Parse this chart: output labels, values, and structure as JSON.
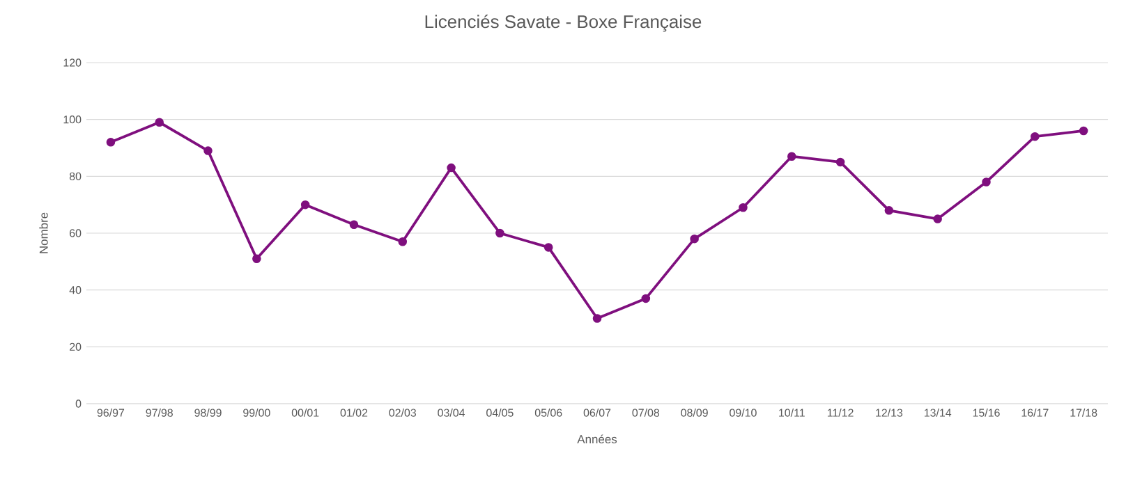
{
  "chart_data": {
    "type": "line",
    "title": "Licenciés Savate - Boxe Française",
    "xlabel": "Années",
    "ylabel": "Nombre",
    "categories": [
      "96/97",
      "97/98",
      "98/99",
      "99/00",
      "00/01",
      "01/02",
      "02/03",
      "03/04",
      "04/05",
      "05/06",
      "06/07",
      "07/08",
      "08/09",
      "09/10",
      "10/11",
      "11/12",
      "12/13",
      "13/14",
      "15/16",
      "16/17",
      "17/18"
    ],
    "series": [
      {
        "color": "#7f0f7e",
        "values": [
          92,
          99,
          89,
          51,
          70,
          63,
          57,
          83,
          60,
          55,
          30,
          37,
          58,
          69,
          87,
          85,
          68,
          65,
          78,
          94,
          96
        ]
      }
    ],
    "ylim": [
      0,
      120
    ],
    "yticks": [
      0,
      20,
      40,
      60,
      80,
      100,
      120
    ],
    "grid": "y",
    "marker": "circle",
    "line_style": "solid"
  }
}
